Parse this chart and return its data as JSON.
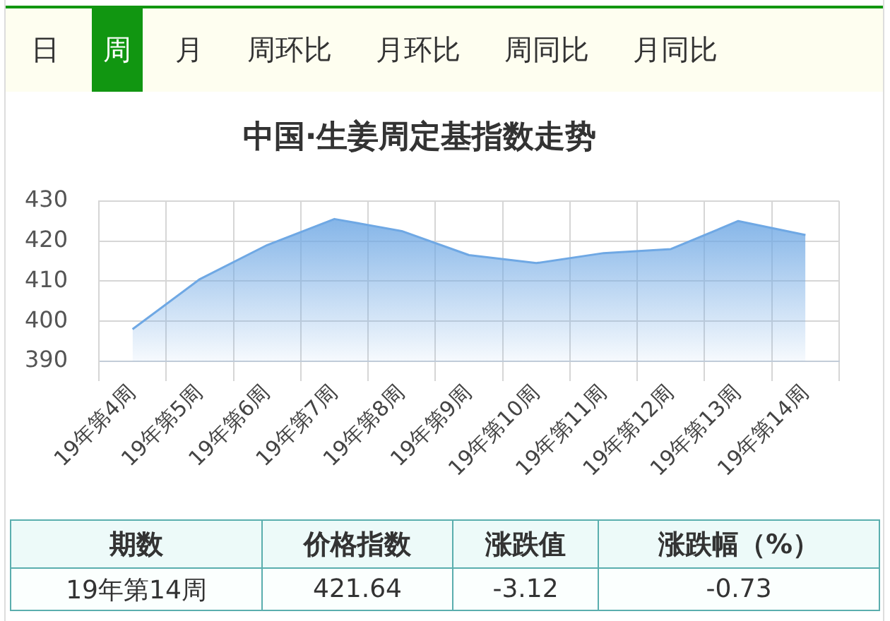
{
  "chart_data": [
    {
      "type": "other",
      "categories": [
        "日",
        "周",
        "月",
        "周环比",
        "月环比",
        "周同比",
        "月同比"
      ],
      "colors": [
        "#fefef0",
        "#119611",
        "#fefef0",
        "#fefef0",
        "#fefef0",
        "#fefef0",
        "#fefef0"
      ]
    },
    {
      "type": "area",
      "title": "中国·生姜周定基指数走势",
      "categories": [
        "19年第4周",
        "19年第5周",
        "19年第6周",
        "19年第7周",
        "19年第8周",
        "19年第9周",
        "19年第10周",
        "19年第11周",
        "19年第12周",
        "19年第13周",
        "19年第14周"
      ],
      "values": [
        398,
        410.5,
        419,
        425.5,
        422.5,
        416.5,
        414.5,
        417,
        418,
        425,
        421.5
      ],
      "color": "#6fa8e4",
      "ylim": [
        390,
        430
      ],
      "yticks": [
        390,
        400,
        410,
        420,
        430
      ],
      "grid": true
    },
    {
      "type": "other",
      "categories": [
        "期数",
        "价格指数",
        "涨跌值",
        "涨跌幅（%）"
      ],
      "annotations": [
        "19年第14周",
        "421.64",
        "-3.12",
        "-0.73"
      ]
    }
  ]
}
